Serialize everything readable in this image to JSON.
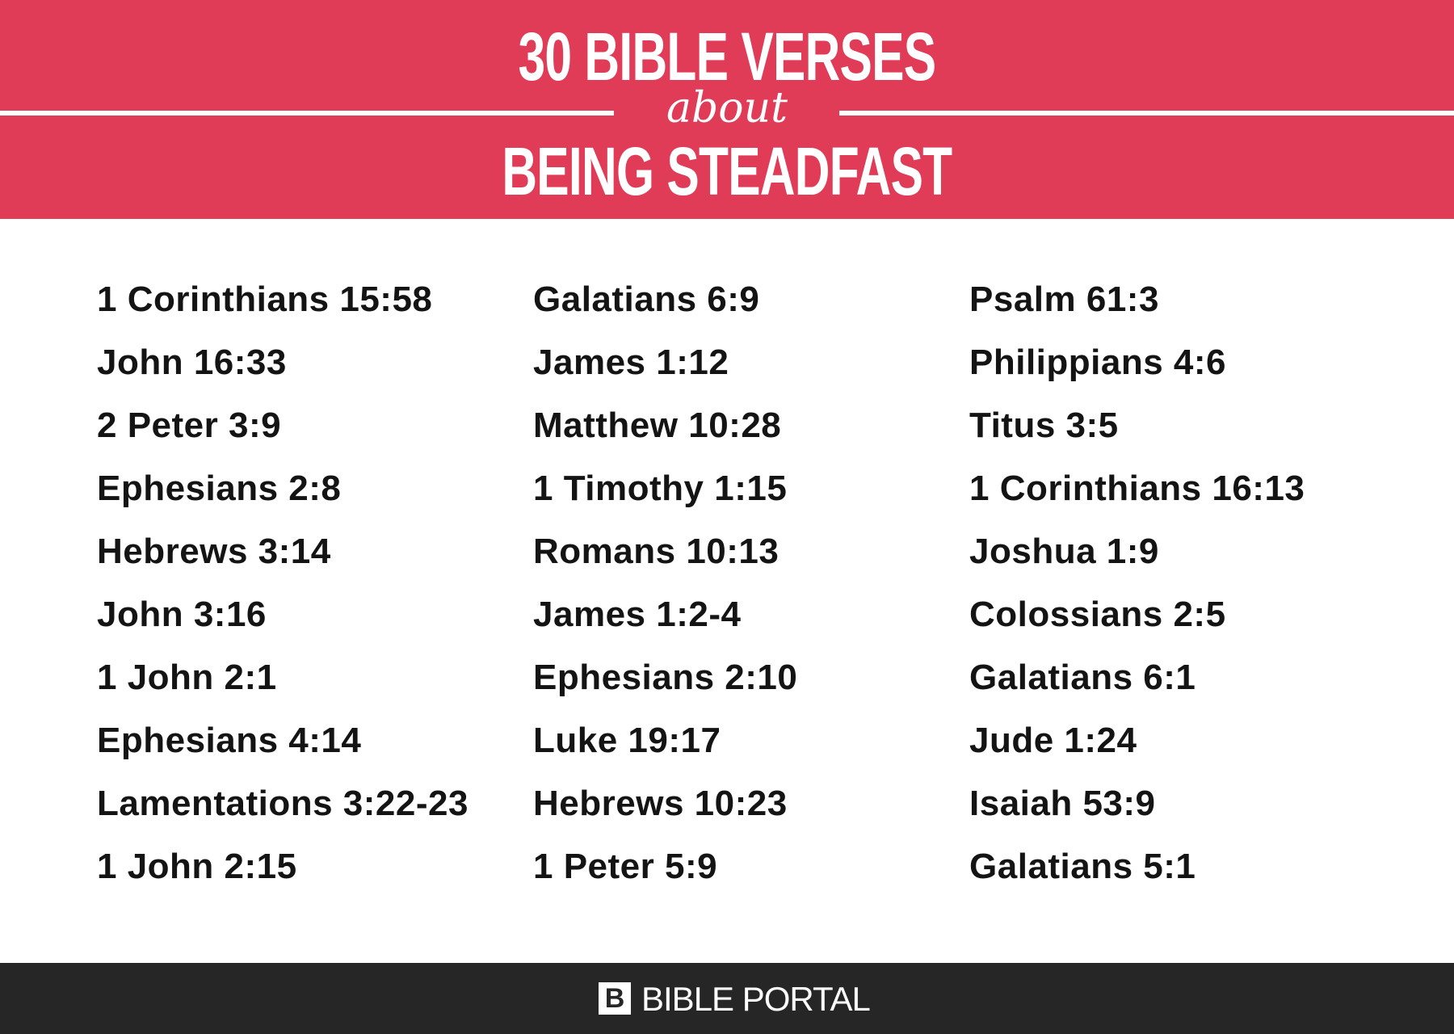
{
  "header": {
    "title_top": "30 BIBLE VERSES",
    "connector": "about",
    "title_bottom": "BEING STEADFAST"
  },
  "columns": [
    [
      "1 Corinthians 15:58",
      "John 16:33",
      "2 Peter 3:9",
      "Ephesians 2:8",
      "Hebrews 3:14",
      "John 3:16",
      "1 John 2:1",
      "Ephesians 4:14",
      "Lamentations 3:22-23",
      "1 John 2:15"
    ],
    [
      "Galatians 6:9",
      "James 1:12",
      "Matthew 10:28",
      "1 Timothy 1:15",
      "Romans 10:13",
      "James 1:2-4",
      "Ephesians 2:10",
      "Luke 19:17",
      "Hebrews 10:23",
      "1 Peter 5:9"
    ],
    [
      "Psalm 61:3",
      "Philippians 4:6",
      "Titus 3:5",
      "1 Corinthians 16:13",
      "Joshua 1:9",
      "Colossians 2:5",
      "Galatians 6:1",
      "Jude 1:24",
      "Isaiah 53:9",
      "Galatians 5:1"
    ]
  ],
  "footer": {
    "logo_letter": "B",
    "brand": "BIBLE PORTAL"
  }
}
